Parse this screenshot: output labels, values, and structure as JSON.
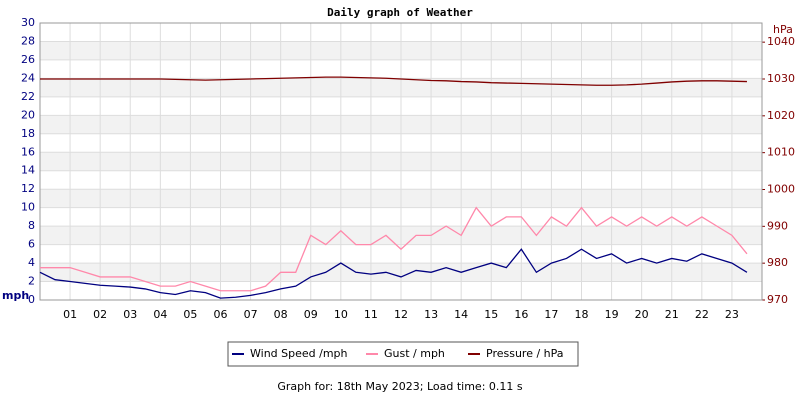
{
  "chart_data": {
    "type": "line",
    "title": "Daily graph of Weather",
    "y_label": "mph",
    "y2_label": "hPa",
    "footer": "Graph for: 18th May 2023; Load time: 0.11 s",
    "x": [
      0,
      0.5,
      1,
      1.5,
      2,
      2.5,
      3,
      3.5,
      4,
      4.5,
      5,
      5.5,
      6,
      6.5,
      7,
      7.5,
      8,
      8.5,
      9,
      9.5,
      10,
      10.5,
      11,
      11.5,
      12,
      12.5,
      13,
      13.5,
      14,
      14.5,
      15,
      15.5,
      16,
      16.5,
      17,
      17.5,
      18,
      18.5,
      19,
      19.5,
      20,
      20.5,
      21,
      21.5,
      22,
      22.5,
      23,
      23.5
    ],
    "xlim": [
      0,
      24
    ],
    "xticks": [
      {
        "value": 1,
        "label": "01"
      },
      {
        "value": 2,
        "label": "02"
      },
      {
        "value": 3,
        "label": "03"
      },
      {
        "value": 4,
        "label": "04"
      },
      {
        "value": 5,
        "label": "05"
      },
      {
        "value": 6,
        "label": "06"
      },
      {
        "value": 7,
        "label": "07"
      },
      {
        "value": 8,
        "label": "08"
      },
      {
        "value": 9,
        "label": "09"
      },
      {
        "value": 10,
        "label": "10"
      },
      {
        "value": 11,
        "label": "11"
      },
      {
        "value": 12,
        "label": "12"
      },
      {
        "value": 13,
        "label": "13"
      },
      {
        "value": 14,
        "label": "14"
      },
      {
        "value": 15,
        "label": "15"
      },
      {
        "value": 16,
        "label": "16"
      },
      {
        "value": 17,
        "label": "17"
      },
      {
        "value": 18,
        "label": "18"
      },
      {
        "value": 19,
        "label": "19"
      },
      {
        "value": 20,
        "label": "20"
      },
      {
        "value": 21,
        "label": "21"
      },
      {
        "value": 22,
        "label": "22"
      },
      {
        "value": 23,
        "label": "23"
      }
    ],
    "ylim": [
      0,
      30
    ],
    "yticks": [
      0,
      2,
      4,
      6,
      8,
      10,
      12,
      14,
      16,
      18,
      20,
      22,
      24,
      26,
      28,
      30
    ],
    "y2lim": [
      970,
      1045.2
    ],
    "y2ticks": [
      970,
      980,
      990,
      1000,
      1010,
      1020,
      1030,
      1040
    ],
    "grid": true,
    "series": [
      {
        "name": "Wind Speed /mph",
        "color": "#000080",
        "values": [
          3,
          2.2,
          2,
          1.8,
          1.6,
          1.5,
          1.4,
          1.2,
          0.8,
          0.6,
          1,
          0.8,
          0.2,
          0.3,
          0.5,
          0.8,
          1.2,
          1.5,
          2.5,
          3,
          4,
          3,
          2.8,
          3,
          2.5,
          3.2,
          3,
          3.5,
          3,
          3.5,
          4,
          3.5,
          5.5,
          3,
          4,
          4.5,
          5.5,
          4.5,
          5,
          4,
          4.5,
          4,
          4.5,
          4.2,
          5,
          4.5,
          4,
          3
        ]
      },
      {
        "name": "Gust / mph",
        "color": "#ff88aa",
        "values": [
          3.5,
          3.5,
          3.5,
          3,
          2.5,
          2.5,
          2.5,
          2,
          1.5,
          1.5,
          2,
          1.5,
          1,
          1,
          1,
          1.5,
          3,
          3,
          7,
          6,
          7.5,
          6,
          6,
          7,
          5.5,
          7,
          7,
          8,
          7,
          10,
          8,
          9,
          9,
          7,
          9,
          8,
          10,
          8,
          9,
          8,
          9,
          8,
          9,
          8,
          9,
          8,
          7,
          5
        ]
      },
      {
        "name": "Pressure / hPa",
        "color": "#800000",
        "axis": "y2",
        "values": [
          1030,
          1030,
          1030,
          1030,
          1030,
          1030,
          1030,
          1030,
          1030,
          1029.9,
          1029.8,
          1029.7,
          1029.8,
          1029.9,
          1030,
          1030.1,
          1030.2,
          1030.3,
          1030.4,
          1030.5,
          1030.5,
          1030.4,
          1030.3,
          1030.2,
          1030,
          1029.8,
          1029.6,
          1029.5,
          1029.3,
          1029.2,
          1029,
          1028.9,
          1028.8,
          1028.7,
          1028.6,
          1028.5,
          1028.4,
          1028.3,
          1028.3,
          1028.4,
          1028.6,
          1028.9,
          1029.2,
          1029.4,
          1029.5,
          1029.5,
          1029.4,
          1029.3
        ]
      }
    ]
  }
}
